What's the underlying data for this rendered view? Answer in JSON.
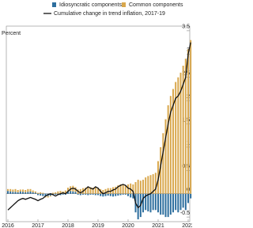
{
  "chart_data": {
    "type": "bar",
    "y_label": "Percent",
    "categories": [
      "2016",
      null,
      null,
      null,
      null,
      null,
      null,
      null,
      null,
      null,
      null,
      null,
      "2017",
      null,
      null,
      null,
      null,
      null,
      null,
      null,
      null,
      null,
      null,
      null,
      "2018",
      null,
      null,
      null,
      null,
      null,
      null,
      null,
      null,
      null,
      null,
      null,
      "2019",
      null,
      null,
      null,
      null,
      null,
      null,
      null,
      null,
      null,
      null,
      null,
      "2020",
      null,
      null,
      null,
      null,
      null,
      null,
      null,
      null,
      null,
      null,
      null,
      "2021",
      null,
      null,
      null,
      null,
      null,
      null,
      null,
      null,
      null,
      null,
      null,
      "2022",
      null
    ],
    "series": [
      {
        "name": "Idiosyncratic components",
        "color": "#2e6f9e",
        "values": [
          0.06,
          0.05,
          0.04,
          0.04,
          0.03,
          0.05,
          0.04,
          0.03,
          0.04,
          0.05,
          0.03,
          0.02,
          -0.03,
          -0.04,
          -0.05,
          -0.06,
          -0.05,
          -0.04,
          -0.03,
          -0.02,
          -0.02,
          -0.03,
          -0.02,
          -0.02,
          0.05,
          0.06,
          0.05,
          0.04,
          -0.02,
          -0.03,
          -0.02,
          -0.02,
          -0.03,
          -0.02,
          -0.02,
          -0.03,
          -0.03,
          -0.05,
          -0.06,
          -0.05,
          -0.04,
          -0.05,
          -0.06,
          -0.05,
          -0.04,
          -0.03,
          -0.02,
          -0.02,
          -0.05,
          -0.08,
          -0.1,
          -0.4,
          -0.55,
          -0.5,
          -0.4,
          -0.35,
          -0.38,
          -0.4,
          -0.35,
          -0.35,
          -0.4,
          -0.45,
          -0.45,
          -0.5,
          -0.5,
          -0.45,
          -0.4,
          -0.35,
          -0.4,
          -0.35,
          -0.3,
          -0.35,
          -0.2,
          -0.1
        ]
      },
      {
        "name": "Common components",
        "color": "#d9a84e",
        "values": [
          0.04,
          0.05,
          0.05,
          0.06,
          0.05,
          0.04,
          0.05,
          0.05,
          0.06,
          0.05,
          0.04,
          0.03,
          0.02,
          0.03,
          0.02,
          -0.02,
          -0.03,
          -0.02,
          0.02,
          0.03,
          0.05,
          0.06,
          0.05,
          0.07,
          0.08,
          0.1,
          0.12,
          0.1,
          0.09,
          0.1,
          0.12,
          0.13,
          0.15,
          0.14,
          0.13,
          0.15,
          0.12,
          0.1,
          0.08,
          0.1,
          0.12,
          0.12,
          0.14,
          0.15,
          0.18,
          0.2,
          0.2,
          0.18,
          0.2,
          0.22,
          0.2,
          0.25,
          0.3,
          0.28,
          0.3,
          0.35,
          0.38,
          0.4,
          0.42,
          0.45,
          0.7,
          1.0,
          1.3,
          1.6,
          1.9,
          2.1,
          2.25,
          2.4,
          2.5,
          2.6,
          2.75,
          2.9,
          3.1,
          3.3
        ]
      },
      {
        "name": "Cumulative change in trend inflation, 2017-19",
        "color": "#111111",
        "type": "line",
        "values": [
          -0.35,
          -0.3,
          -0.25,
          -0.2,
          -0.15,
          -0.12,
          -0.1,
          -0.12,
          -0.1,
          -0.08,
          -0.1,
          -0.12,
          -0.15,
          -0.12,
          -0.1,
          -0.05,
          -0.02,
          0,
          -0.02,
          -0.05,
          -0.02,
          0,
          0.02,
          0,
          0.05,
          0.1,
          0.12,
          0.1,
          0.05,
          0.02,
          0.05,
          0.1,
          0.15,
          0.12,
          0.1,
          0.15,
          0.12,
          0.05,
          0,
          0.02,
          0.05,
          0.05,
          0.08,
          0.1,
          0.15,
          0.18,
          0.2,
          0.18,
          0.12,
          0.1,
          0.05,
          -0.2,
          -0.3,
          -0.25,
          -0.1,
          -0.05,
          -0.02,
          0,
          0.05,
          0.1,
          0.3,
          0.6,
          0.9,
          1.2,
          1.5,
          1.75,
          1.9,
          2.05,
          2.1,
          2.2,
          2.35,
          2.5,
          3.0,
          3.25
        ]
      }
    ],
    "ylim": [
      -0.6,
      3.6
    ],
    "yticks": [
      -0.5,
      0,
      0.5,
      1,
      1.5,
      2,
      2.5,
      3,
      3.5
    ]
  }
}
